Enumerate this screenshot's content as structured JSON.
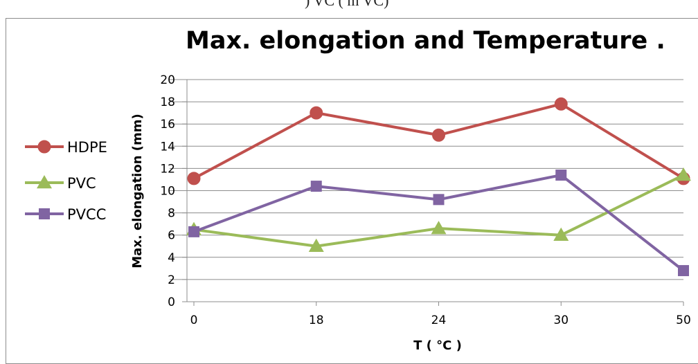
{
  "header_fragment": ")  VC (  m  VC)",
  "chart_data": {
    "type": "line",
    "title": "Max. elongation and Temperature .",
    "xlabel": "T ( °C )",
    "ylabel": "Max. elongation (mm)",
    "categories": [
      "0",
      "18",
      "24",
      "30",
      "50"
    ],
    "ylim": [
      0,
      20
    ],
    "yticks": [
      0,
      2,
      4,
      6,
      8,
      10,
      12,
      14,
      16,
      18,
      20
    ],
    "grid": true,
    "legend_position": "left",
    "series": [
      {
        "name": "HDPE",
        "color": "#c0504d",
        "marker": "circle",
        "values": [
          11.1,
          17.0,
          15.0,
          17.8,
          11.1
        ]
      },
      {
        "name": "PVC",
        "color": "#9bbb59",
        "marker": "triangle",
        "values": [
          6.5,
          5.0,
          6.6,
          6.0,
          11.4
        ]
      },
      {
        "name": "PVCC",
        "color": "#8064a2",
        "marker": "square",
        "values": [
          6.3,
          10.4,
          9.2,
          11.4,
          2.8
        ]
      }
    ]
  }
}
